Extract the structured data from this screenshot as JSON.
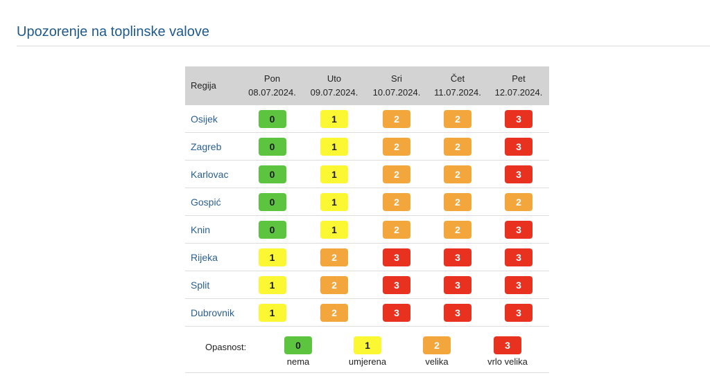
{
  "page": {
    "title": "Upozorenje na toplinske valove"
  },
  "table": {
    "region_header": "Regija",
    "days": [
      {
        "name": "Pon",
        "date": "08.07.2024."
      },
      {
        "name": "Uto",
        "date": "09.07.2024."
      },
      {
        "name": "Sri",
        "date": "10.07.2024."
      },
      {
        "name": "Čet",
        "date": "11.07.2024."
      },
      {
        "name": "Pet",
        "date": "12.07.2024."
      }
    ],
    "rows": [
      {
        "region": "Osijek",
        "levels": [
          "0",
          "1",
          "2",
          "2",
          "3"
        ]
      },
      {
        "region": "Zagreb",
        "levels": [
          "0",
          "1",
          "2",
          "2",
          "3"
        ]
      },
      {
        "region": "Karlovac",
        "levels": [
          "0",
          "1",
          "2",
          "2",
          "3"
        ]
      },
      {
        "region": "Gospić",
        "levels": [
          "0",
          "1",
          "2",
          "2",
          "2"
        ]
      },
      {
        "region": "Knin",
        "levels": [
          "0",
          "1",
          "2",
          "2",
          "3"
        ]
      },
      {
        "region": "Rijeka",
        "levels": [
          "1",
          "2",
          "3",
          "3",
          "3"
        ]
      },
      {
        "region": "Split",
        "levels": [
          "1",
          "2",
          "3",
          "3",
          "3"
        ]
      },
      {
        "region": "Dubrovnik",
        "levels": [
          "1",
          "2",
          "3",
          "3",
          "3"
        ]
      }
    ]
  },
  "legend": {
    "label": "Opasnost:",
    "items": [
      {
        "level": "0",
        "text": "nema"
      },
      {
        "level": "1",
        "text": "umjerena"
      },
      {
        "level": "2",
        "text": "velika"
      },
      {
        "level": "3",
        "text": "vrlo velika"
      }
    ]
  },
  "colors": {
    "level_0": "#5cc43f",
    "level_1": "#fbf833",
    "level_2": "#f2a63c",
    "level_3": "#e8321f",
    "title": "#1f5a8c",
    "region_link": "#2a5f93",
    "header_bg": "#d3d3d3"
  }
}
